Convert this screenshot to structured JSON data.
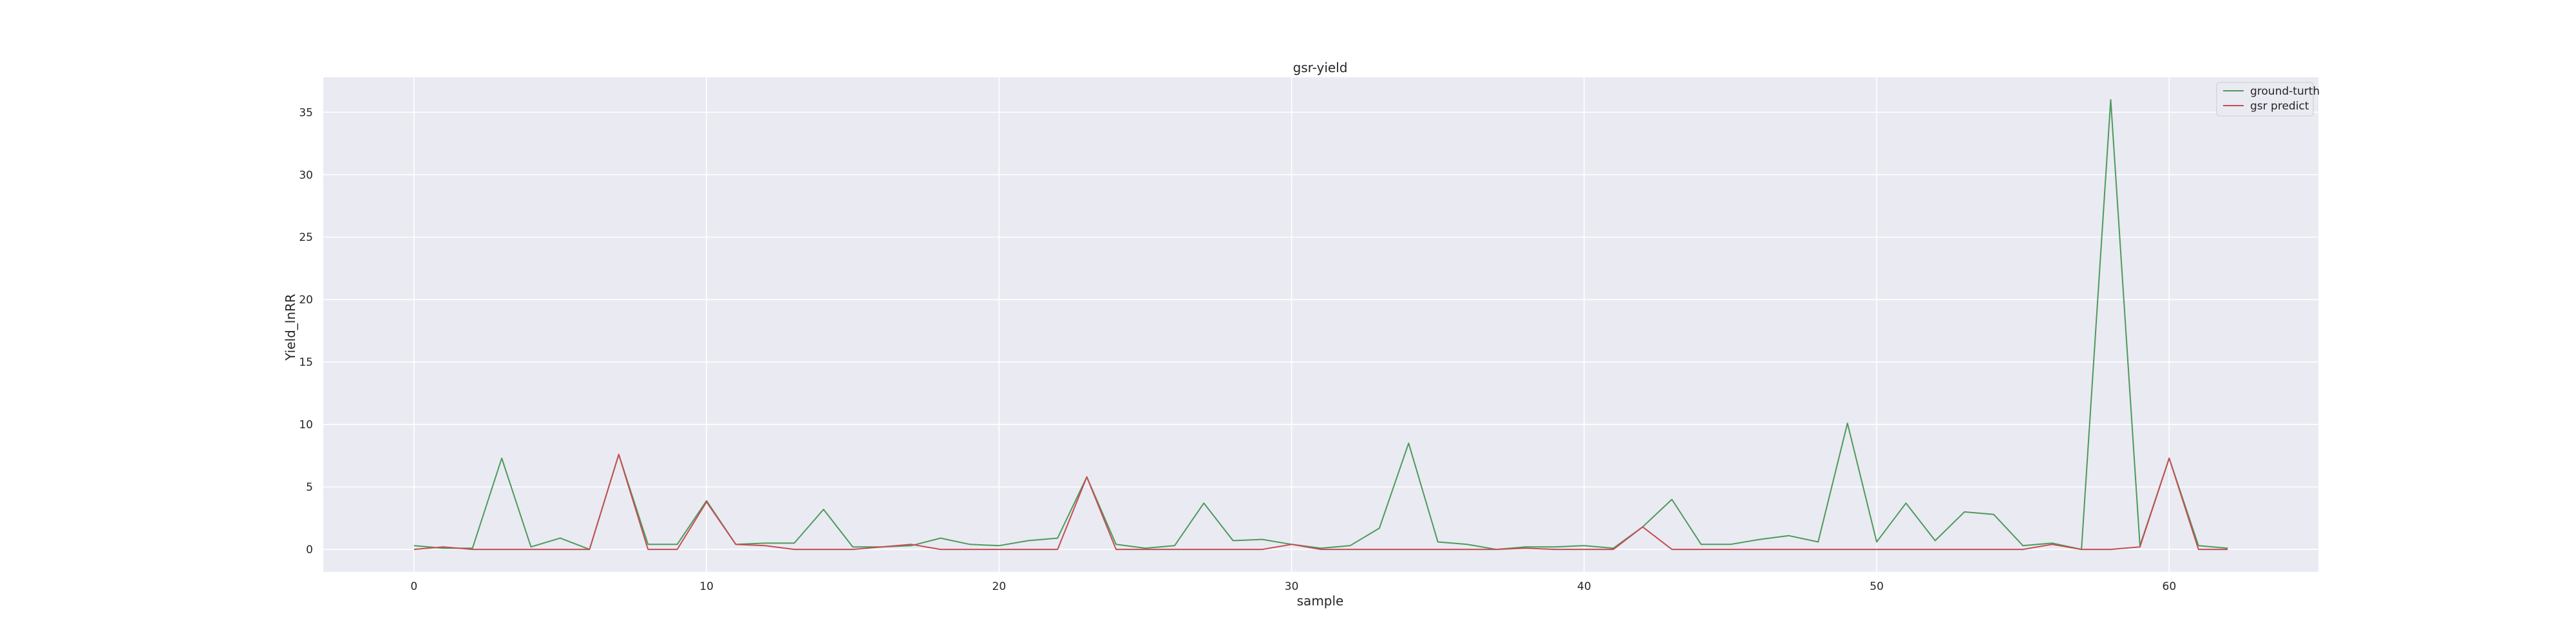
{
  "chart_data": {
    "type": "line",
    "title": "gsr-yield",
    "xlabel": "sample",
    "ylabel": "Yield_lnRR",
    "xlim": [
      -3.1,
      65.1
    ],
    "ylim": [
      -1.8,
      37.8
    ],
    "xticks": [
      0,
      10,
      20,
      30,
      40,
      50,
      60
    ],
    "yticks": [
      0,
      5,
      10,
      15,
      20,
      25,
      30,
      35
    ],
    "grid": true,
    "legend_position": "top-right",
    "x": [
      0,
      1,
      2,
      3,
      4,
      5,
      6,
      7,
      8,
      9,
      10,
      11,
      12,
      13,
      14,
      15,
      16,
      17,
      18,
      19,
      20,
      21,
      22,
      23,
      24,
      25,
      26,
      27,
      28,
      29,
      30,
      31,
      32,
      33,
      34,
      35,
      36,
      37,
      38,
      39,
      40,
      41,
      42,
      43,
      44,
      45,
      46,
      47,
      48,
      49,
      50,
      51,
      52,
      53,
      54,
      55,
      56,
      57,
      58,
      59,
      60,
      61,
      62
    ],
    "series": [
      {
        "name": "ground-turth",
        "color": "#4c9a5c",
        "values": [
          0.3,
          0.1,
          0.1,
          7.3,
          0.2,
          0.9,
          0.0,
          7.6,
          0.4,
          0.4,
          3.9,
          0.4,
          0.5,
          0.5,
          3.2,
          0.2,
          0.2,
          0.3,
          0.9,
          0.4,
          0.3,
          0.7,
          0.9,
          5.8,
          0.4,
          0.1,
          0.3,
          3.7,
          0.7,
          0.8,
          0.4,
          0.1,
          0.3,
          1.7,
          8.5,
          0.6,
          0.4,
          0.0,
          0.2,
          0.2,
          0.3,
          0.1,
          1.8,
          4.0,
          0.4,
          0.4,
          0.8,
          1.1,
          0.6,
          10.1,
          0.6,
          3.7,
          0.7,
          3.0,
          2.8,
          0.3,
          0.5,
          0.0,
          36.0,
          0.3,
          7.3,
          0.3,
          0.1
        ]
      },
      {
        "name": "gsr predict",
        "color": "#c44e52",
        "values": [
          0.0,
          0.2,
          0.0,
          0.0,
          0.0,
          0.0,
          0.0,
          7.6,
          0.0,
          0.0,
          3.8,
          0.4,
          0.3,
          0.0,
          0.0,
          0.0,
          0.2,
          0.4,
          0.0,
          0.0,
          0.0,
          0.0,
          0.0,
          5.8,
          0.0,
          0.0,
          0.0,
          0.0,
          0.0,
          0.0,
          0.4,
          0.0,
          0.0,
          0.0,
          0.0,
          0.0,
          0.0,
          0.0,
          0.1,
          0.0,
          0.0,
          0.0,
          1.8,
          0.0,
          0.0,
          0.0,
          0.0,
          0.0,
          0.0,
          0.0,
          0.0,
          0.0,
          0.0,
          0.0,
          0.0,
          0.0,
          0.4,
          0.0,
          0.0,
          0.2,
          7.3,
          0.0,
          0.0
        ]
      }
    ]
  }
}
